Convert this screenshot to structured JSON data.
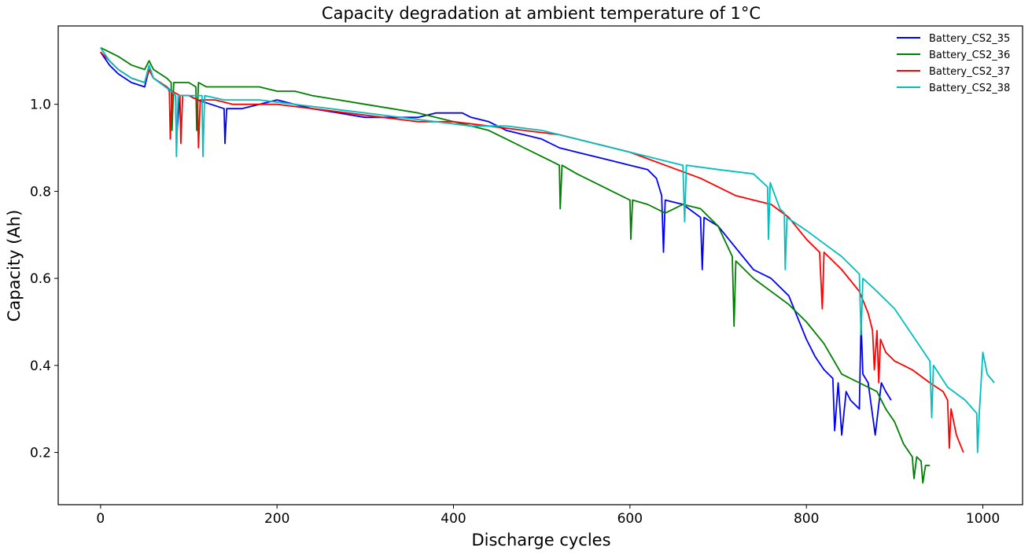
{
  "chart_data": {
    "type": "line",
    "title": "Capacity degradation at ambient temperature of 1°C",
    "xlabel": "Discharge cycles",
    "ylabel": "Capacity (Ah)",
    "xlim": [
      -48,
      1045
    ],
    "ylim": [
      0.08,
      1.18
    ],
    "xticks": [
      0,
      200,
      400,
      600,
      800,
      1000
    ],
    "yticks": [
      0.2,
      0.4,
      0.6,
      0.8,
      1.0
    ],
    "xtick_labels": [
      "0",
      "200",
      "400",
      "600",
      "800",
      "1000"
    ],
    "ytick_labels": [
      "0.2",
      "0.4",
      "0.6",
      "0.8",
      "1.0"
    ],
    "grid": false,
    "legend_position": "top-right",
    "series": [
      {
        "name": "Battery_CS2_35",
        "color": "#0000ff",
        "x": [
          0,
          10,
          20,
          35,
          50,
          55,
          60,
          75,
          80,
          85,
          86,
          90,
          100,
          110,
          125,
          140,
          141,
          143,
          160,
          180,
          200,
          220,
          240,
          270,
          300,
          330,
          360,
          380,
          400,
          410,
          420,
          440,
          460,
          480,
          500,
          520,
          540,
          560,
          580,
          600,
          620,
          630,
          636,
          638,
          640,
          660,
          680,
          682,
          684,
          700,
          720,
          740,
          760,
          780,
          800,
          810,
          820,
          830,
          832,
          836,
          840,
          845,
          850,
          860,
          862,
          864,
          870,
          878,
          885,
          890,
          896
        ],
        "y": [
          1.12,
          1.09,
          1.07,
          1.05,
          1.04,
          1.08,
          1.06,
          1.04,
          1.03,
          1.02,
          0.92,
          1.02,
          1.02,
          1.01,
          1.0,
          0.99,
          0.91,
          0.99,
          0.99,
          1.0,
          1.01,
          1.0,
          0.99,
          0.98,
          0.97,
          0.97,
          0.97,
          0.98,
          0.98,
          0.98,
          0.97,
          0.96,
          0.94,
          0.93,
          0.92,
          0.9,
          0.89,
          0.88,
          0.87,
          0.86,
          0.85,
          0.83,
          0.79,
          0.66,
          0.78,
          0.77,
          0.74,
          0.62,
          0.74,
          0.72,
          0.67,
          0.62,
          0.6,
          0.56,
          0.46,
          0.42,
          0.39,
          0.37,
          0.25,
          0.36,
          0.24,
          0.34,
          0.32,
          0.3,
          0.5,
          0.38,
          0.36,
          0.24,
          0.36,
          0.34,
          0.32
        ]
      },
      {
        "name": "Battery_CS2_36",
        "color": "#008000",
        "x": [
          0,
          10,
          20,
          35,
          50,
          55,
          60,
          75,
          80,
          81,
          83,
          90,
          100,
          108,
          109,
          111,
          120,
          140,
          160,
          180,
          200,
          220,
          240,
          270,
          300,
          330,
          360,
          400,
          440,
          460,
          480,
          500,
          510,
          520,
          521,
          523,
          540,
          560,
          580,
          600,
          601,
          603,
          620,
          640,
          660,
          680,
          700,
          716,
          718,
          720,
          740,
          760,
          780,
          800,
          820,
          840,
          860,
          880,
          890,
          900,
          910,
          920,
          922,
          925,
          930,
          932,
          935,
          940
        ],
        "y": [
          1.13,
          1.12,
          1.11,
          1.09,
          1.08,
          1.1,
          1.08,
          1.06,
          1.05,
          0.94,
          1.05,
          1.05,
          1.05,
          1.04,
          0.94,
          1.05,
          1.04,
          1.04,
          1.04,
          1.04,
          1.03,
          1.03,
          1.02,
          1.01,
          1.0,
          0.99,
          0.98,
          0.96,
          0.94,
          0.92,
          0.9,
          0.88,
          0.87,
          0.86,
          0.76,
          0.86,
          0.84,
          0.82,
          0.8,
          0.78,
          0.69,
          0.78,
          0.77,
          0.75,
          0.77,
          0.76,
          0.72,
          0.65,
          0.49,
          0.64,
          0.6,
          0.57,
          0.54,
          0.5,
          0.45,
          0.38,
          0.36,
          0.34,
          0.3,
          0.27,
          0.22,
          0.19,
          0.14,
          0.19,
          0.18,
          0.13,
          0.17,
          0.17
        ]
      },
      {
        "name": "Battery_CS2_37",
        "color": "#ff0000",
        "x": [
          0,
          10,
          20,
          35,
          50,
          55,
          60,
          75,
          78,
          79,
          81,
          90,
          91,
          93,
          100,
          110,
          111,
          113,
          130,
          150,
          180,
          200,
          240,
          280,
          320,
          360,
          400,
          440,
          480,
          520,
          560,
          600,
          640,
          680,
          700,
          720,
          740,
          760,
          780,
          800,
          815,
          818,
          820,
          840,
          860,
          870,
          875,
          877,
          880,
          882,
          884,
          890,
          900,
          910,
          920,
          940,
          955,
          960,
          962,
          964,
          970,
          978
        ],
        "y": [
          1.12,
          1.1,
          1.08,
          1.06,
          1.05,
          1.08,
          1.06,
          1.04,
          1.03,
          0.92,
          1.03,
          1.02,
          0.91,
          1.02,
          1.02,
          1.01,
          0.9,
          1.01,
          1.01,
          1.0,
          1.0,
          1.0,
          0.99,
          0.98,
          0.97,
          0.96,
          0.96,
          0.95,
          0.94,
          0.93,
          0.91,
          0.89,
          0.86,
          0.83,
          0.81,
          0.79,
          0.78,
          0.77,
          0.74,
          0.69,
          0.66,
          0.53,
          0.66,
          0.62,
          0.57,
          0.52,
          0.48,
          0.39,
          0.48,
          0.36,
          0.46,
          0.43,
          0.41,
          0.4,
          0.39,
          0.36,
          0.34,
          0.32,
          0.21,
          0.3,
          0.24,
          0.2
        ]
      },
      {
        "name": "Battery_CS2_38",
        "color": "#00bfbf",
        "x": [
          0,
          10,
          20,
          35,
          50,
          55,
          60,
          80,
          85,
          86,
          88,
          100,
          115,
          116,
          118,
          140,
          180,
          220,
          260,
          300,
          340,
          380,
          420,
          460,
          500,
          540,
          580,
          620,
          660,
          662,
          664,
          700,
          740,
          756,
          757,
          759,
          770,
          775,
          776,
          778,
          800,
          820,
          840,
          860,
          862,
          864,
          880,
          900,
          920,
          940,
          942,
          944,
          960,
          980,
          993,
          994,
          996,
          1000,
          1005,
          1013
        ],
        "y": [
          1.13,
          1.1,
          1.08,
          1.06,
          1.05,
          1.09,
          1.06,
          1.03,
          1.02,
          0.88,
          1.02,
          1.02,
          1.02,
          0.88,
          1.02,
          1.01,
          1.01,
          1.0,
          0.99,
          0.98,
          0.97,
          0.96,
          0.95,
          0.95,
          0.94,
          0.92,
          0.9,
          0.88,
          0.86,
          0.73,
          0.86,
          0.85,
          0.84,
          0.81,
          0.69,
          0.82,
          0.76,
          0.75,
          0.62,
          0.74,
          0.71,
          0.68,
          0.65,
          0.61,
          0.47,
          0.6,
          0.57,
          0.53,
          0.47,
          0.41,
          0.28,
          0.4,
          0.35,
          0.32,
          0.29,
          0.2,
          0.29,
          0.43,
          0.38,
          0.36
        ]
      }
    ]
  }
}
